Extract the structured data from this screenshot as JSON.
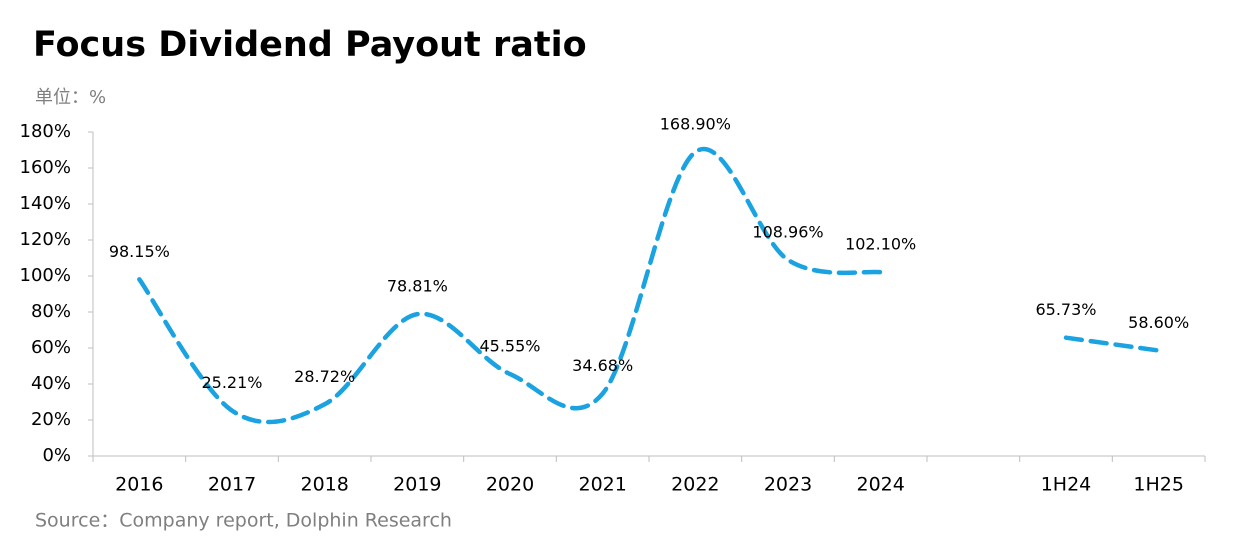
{
  "chart_data": {
    "type": "line",
    "title": "Focus Dividend Payout ratio",
    "unit_label": "单位：%",
    "source": "Source：Company report, Dolphin Research",
    "categories": [
      "2016",
      "2017",
      "2018",
      "2019",
      "2020",
      "2021",
      "2022",
      "2023",
      "2024",
      null,
      "1H24",
      "1H25"
    ],
    "series": [
      {
        "name": "Dividend payout ratio",
        "color": "#1aa3e0",
        "values": [
          98.15,
          25.21,
          28.72,
          78.81,
          45.55,
          34.68,
          168.9,
          108.96,
          102.1,
          null,
          65.73,
          58.6
        ],
        "value_labels": [
          "98.15%",
          "25.21%",
          "28.72%",
          "78.81%",
          "45.55%",
          "34.68%",
          "168.90%",
          "108.96%",
          "102.10%",
          null,
          "65.73%",
          "58.60%"
        ]
      }
    ],
    "ylim": [
      0,
      180
    ],
    "yticks": [
      {
        "value": 0,
        "label": "0%"
      },
      {
        "value": 20,
        "label": "20%"
      },
      {
        "value": 40,
        "label": "40%"
      },
      {
        "value": 60,
        "label": "60%"
      },
      {
        "value": 80,
        "label": "80%"
      },
      {
        "value": 100,
        "label": "100%"
      },
      {
        "value": 120,
        "label": "120%"
      },
      {
        "value": 140,
        "label": "140%"
      },
      {
        "value": 160,
        "label": "160%"
      },
      {
        "value": 180,
        "label": "180%"
      }
    ],
    "grid": false,
    "smooth": true,
    "dashed": true
  }
}
